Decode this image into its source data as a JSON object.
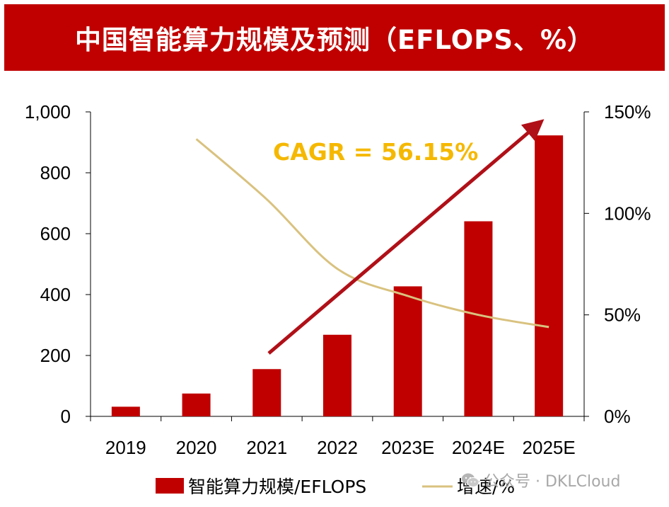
{
  "header": {
    "title": "中国智能算力规模及预测（EFLOPS、%）"
  },
  "chart_data": {
    "type": "bar+line",
    "title": "中国智能算力规模及预测（EFLOPS、%）",
    "categories": [
      "2019",
      "2020",
      "2021",
      "2022",
      "2023E",
      "2024E",
      "2025E"
    ],
    "series": [
      {
        "name": "智能算力规模/EFLOPS",
        "type": "bar",
        "axis": "left",
        "values": [
          31.7,
          75.0,
          155.2,
          268.0,
          427.0,
          640.7,
          922.8
        ]
      },
      {
        "name": "增速/%",
        "type": "line",
        "axis": "right",
        "values": [
          null,
          136.6,
          106.9,
          72.7,
          59.3,
          50.0,
          44.0
        ]
      }
    ],
    "ylim_left": [
      0,
      1000
    ],
    "yticks_left": [
      "0",
      "200",
      "400",
      "600",
      "800",
      "1,000"
    ],
    "ylim_right": [
      0,
      150
    ],
    "yticks_right": [
      "0%",
      "50%",
      "100%",
      "150%"
    ],
    "annotation": "CAGR = 56.15%",
    "colors": {
      "bar": "#c00000",
      "line": "#d9c27f",
      "arrow": "#b01018",
      "cagr": "#f5b800"
    },
    "legend_position": "bottom"
  },
  "watermark": {
    "text": "公众号 · DKLCloud",
    "icon": "wechat-icon"
  }
}
